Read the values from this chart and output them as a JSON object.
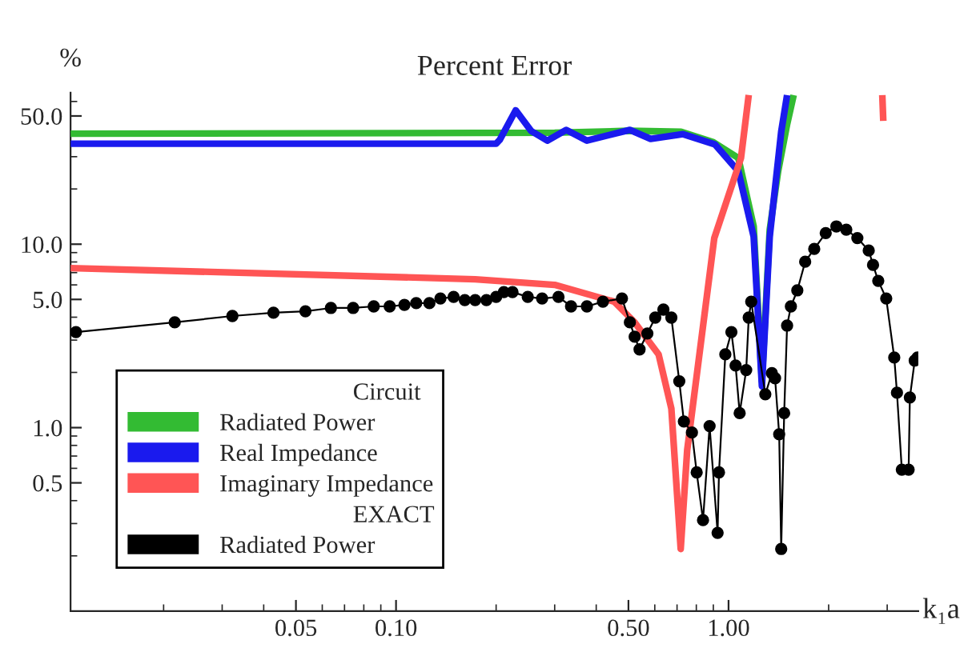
{
  "chart_data": {
    "type": "line",
    "title": "Percent Error",
    "xlabel": "k₁a",
    "ylabel": "%",
    "log": "xy",
    "xlim": [
      0.0105,
      3.72
    ],
    "ylim": [
      0.1,
      67
    ],
    "xticks": [
      {
        "value": 0.05,
        "label": "0.05"
      },
      {
        "value": 0.1,
        "label": "0.10"
      },
      {
        "value": 0.5,
        "label": "0.50"
      },
      {
        "value": 1.0,
        "label": "1.00"
      }
    ],
    "yticks": [
      {
        "value": 0.5,
        "label": "0.5"
      },
      {
        "value": 1.0,
        "label": "1.0"
      },
      {
        "value": 5.0,
        "label": "5.0"
      },
      {
        "value": 10.0,
        "label": "10.0"
      },
      {
        "value": 50.0,
        "label": "50.0"
      }
    ],
    "grid": false,
    "legend": "bottom left",
    "annotations": [
      "Circuit",
      "EXACT"
    ],
    "series": [
      {
        "name": "Radiated Power",
        "color": "#33bb33",
        "marker": "none",
        "x": [
          0.0105,
          0.3,
          0.5,
          0.72,
          0.9,
          1.07,
          1.19,
          1.26,
          1.33,
          1.41,
          1.5,
          1.57
        ],
        "values": [
          40,
          40.5,
          41.5,
          41,
          36,
          29.5,
          12.5,
          1.79,
          12,
          25,
          45,
          65
        ]
      },
      {
        "name": "Real Impedance",
        "color": "#1a1aee",
        "marker": "none",
        "x": [
          0.0105,
          0.2,
          0.205,
          0.229,
          0.255,
          0.285,
          0.325,
          0.375,
          0.505,
          0.583,
          0.73,
          0.91,
          1.07,
          1.19,
          1.26,
          1.33,
          1.44,
          1.5
        ],
        "values": [
          35.3,
          35.3,
          37,
          53.7,
          41.4,
          36.7,
          42,
          36.7,
          42,
          37.5,
          39.8,
          35,
          25,
          11,
          1.68,
          11,
          41,
          65
        ]
      },
      {
        "name": "Imaginary Impedance",
        "color": "#ff5555",
        "marker": "none",
        "x": [
          0.0105,
          0.173,
          0.3,
          0.453,
          0.522,
          0.616,
          0.673,
          0.718,
          0.751,
          0.906,
          1.09,
          1.15,
          2.0,
          2.9,
          2.92
        ],
        "values": [
          7.41,
          6.44,
          6.0,
          4.86,
          3.75,
          2.51,
          1.27,
          0.218,
          0.755,
          10.8,
          29.5,
          65,
          null,
          65,
          47
        ]
      },
      {
        "name": "Radiated Power",
        "color": "#000000",
        "marker": "circle",
        "x": [
          0.0109,
          0.0216,
          0.0322,
          0.0428,
          0.0534,
          0.0637,
          0.0743,
          0.0857,
          0.0957,
          0.106,
          0.115,
          0.126,
          0.136,
          0.149,
          0.161,
          0.173,
          0.187,
          0.2,
          0.211,
          0.224,
          0.249,
          0.275,
          0.308,
          0.336,
          0.375,
          0.419,
          0.478,
          0.505,
          0.522,
          0.54,
          0.57,
          0.602,
          0.637,
          0.673,
          0.711,
          0.734,
          0.776,
          0.802,
          0.838,
          0.877,
          0.927,
          0.936,
          0.978,
          1.02,
          1.05,
          1.08,
          1.13,
          1.15,
          1.17,
          1.29,
          1.35,
          1.38,
          1.42,
          1.44,
          1.47,
          1.5,
          1.54,
          1.61,
          1.7,
          1.81,
          1.96,
          2.11,
          2.26,
          2.44,
          2.64,
          2.72,
          2.82,
          2.98,
          3.15,
          3.21,
          3.32,
          3.48,
          3.51,
          3.63,
          3.7
        ],
        "values": [
          3.32,
          3.75,
          4.06,
          4.23,
          4.31,
          4.49,
          4.49,
          4.58,
          4.58,
          4.67,
          4.77,
          4.77,
          5.06,
          5.16,
          4.96,
          4.96,
          4.96,
          5.16,
          5.48,
          5.48,
          5.16,
          5.06,
          5.16,
          4.58,
          4.58,
          4.86,
          5.06,
          3.75,
          3.13,
          2.67,
          3.26,
          3.98,
          4.4,
          3.98,
          1.79,
          1.08,
          0.94,
          0.57,
          0.313,
          1.02,
          0.267,
          0.57,
          2.51,
          3.32,
          2.18,
          1.2,
          2.06,
          3.98,
          4.86,
          1.52,
          1.98,
          1.86,
          0.92,
          0.218,
          1.2,
          3.6,
          4.58,
          5.6,
          8.02,
          9.42,
          11.5,
          12.5,
          12.0,
          10.8,
          9.23,
          7.71,
          6.31,
          5.06,
          2.41,
          1.55,
          0.59,
          0.59,
          1.46,
          2.32,
          2.41
        ]
      }
    ]
  }
}
